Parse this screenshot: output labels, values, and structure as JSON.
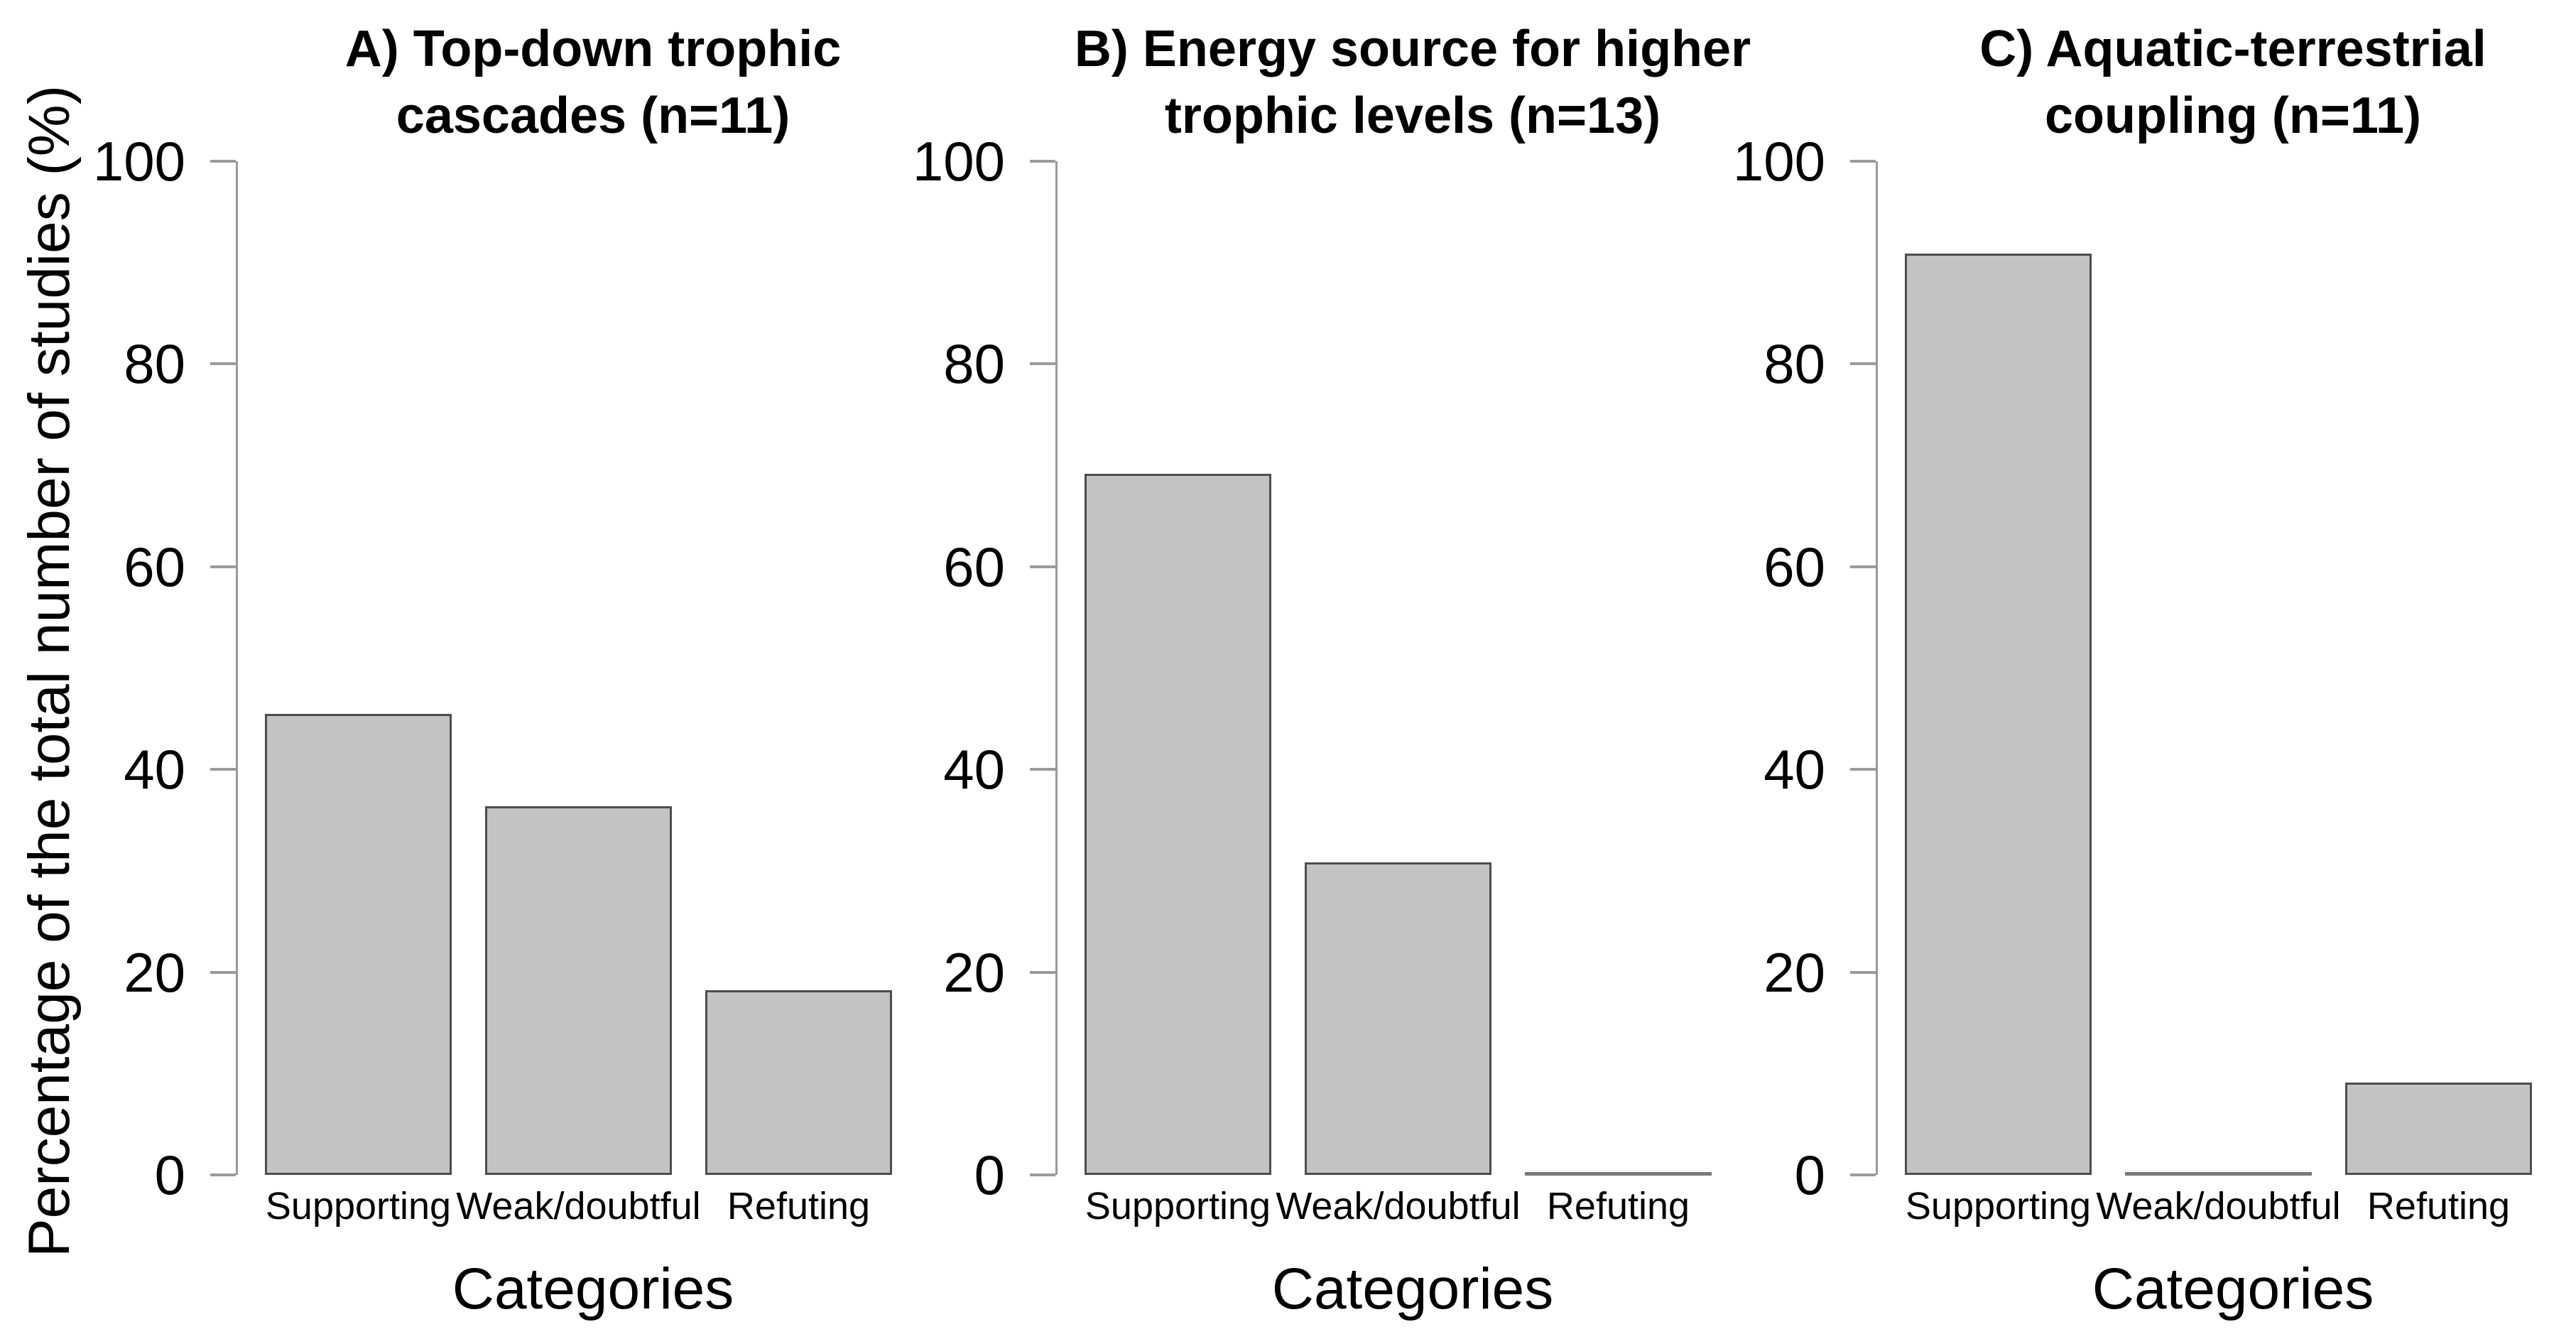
{
  "figure": {
    "ylabel": "Percentage of the total number of studies (%)",
    "background": "#ffffff",
    "bar_fill": "#c3c3c3",
    "bar_border": "#4d4d4d",
    "axis_color": "#9a9a9a",
    "text_color": "#000000"
  },
  "chart_data": [
    {
      "type": "bar",
      "title_line1": "A) Top-down trophic",
      "title_line2": "cascades (n=11)",
      "n": 11,
      "categories": [
        "Supporting",
        "Weak/doubtful",
        "Refuting"
      ],
      "values": [
        45.5,
        36.4,
        18.2
      ],
      "xlabel": "Categories",
      "ylabel": "Percentage of the total number of studies (%)",
      "ylim": [
        0,
        100
      ],
      "yticks": [
        0,
        20,
        40,
        60,
        80,
        100
      ],
      "grid": false,
      "legend": null
    },
    {
      "type": "bar",
      "title_line1": "B) Energy source for higher",
      "title_line2": "trophic levels (n=13)",
      "n": 13,
      "categories": [
        "Supporting",
        "Weak/doubtful",
        "Refuting"
      ],
      "values": [
        69.2,
        30.8,
        0
      ],
      "xlabel": "Categories",
      "ylabel": "Percentage of the total number of studies (%)",
      "ylim": [
        0,
        100
      ],
      "yticks": [
        0,
        20,
        40,
        60,
        80,
        100
      ],
      "grid": false,
      "legend": null
    },
    {
      "type": "bar",
      "title_line1": "C) Aquatic-terrestrial",
      "title_line2": "coupling (n=11)",
      "n": 11,
      "categories": [
        "Supporting",
        "Weak/doubtful",
        "Refuting"
      ],
      "values": [
        90.9,
        0,
        9.1
      ],
      "xlabel": "Categories",
      "ylabel": "Percentage of the total number of studies (%)",
      "ylim": [
        0,
        100
      ],
      "yticks": [
        0,
        20,
        40,
        60,
        80,
        100
      ],
      "grid": false,
      "legend": null
    }
  ]
}
